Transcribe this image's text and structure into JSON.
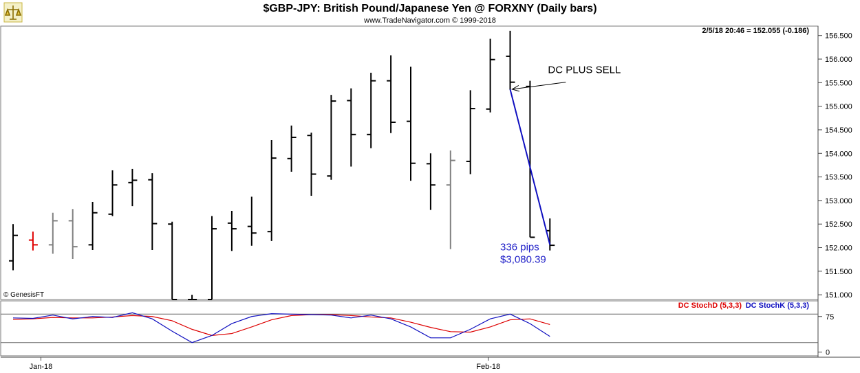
{
  "chart_data": [
    {
      "type": "ohlc",
      "title": "$GBP-JPY:  British Pound/Japanese Yen @ FORXNY  (Daily bars)",
      "subtitle": "www.TradeNavigator.com © 1999-2018",
      "readout": "2/5/18 20:46 = 152.055 (-0.186)",
      "credit": "© GenesisFT",
      "ylim": [
        150.9,
        156.7
      ],
      "y_ticks": [
        151.0,
        151.5,
        152.0,
        152.5,
        153.0,
        153.5,
        154.0,
        154.5,
        155.0,
        155.5,
        156.0,
        156.5
      ],
      "y_tick_labels": [
        "151.000",
        "151.500",
        "152.000",
        "152.500",
        "153.000",
        "153.500",
        "154.000",
        "154.500",
        "155.000",
        "155.500",
        "156.000",
        "156.500"
      ],
      "x_labels": [
        {
          "label": "Jan-18",
          "index": 1.4
        },
        {
          "label": "Feb-18",
          "index": 23.9
        }
      ],
      "bars": [
        {
          "o": 151.72,
          "h": 152.5,
          "l": 151.52,
          "c": 152.26,
          "color": "#000000"
        },
        {
          "o": 152.16,
          "h": 152.34,
          "l": 151.94,
          "c": 152.06,
          "color": "#e00000"
        },
        {
          "o": 152.06,
          "h": 152.74,
          "l": 151.87,
          "c": 152.57,
          "color": "#808080"
        },
        {
          "o": 152.57,
          "h": 152.82,
          "l": 151.76,
          "c": 152.02,
          "color": "#808080"
        },
        {
          "o": 152.06,
          "h": 152.97,
          "l": 151.95,
          "c": 152.74,
          "color": "#000000"
        },
        {
          "o": 152.71,
          "h": 153.64,
          "l": 152.67,
          "c": 153.33,
          "color": "#000000"
        },
        {
          "o": 153.38,
          "h": 153.67,
          "l": 152.88,
          "c": 153.43,
          "color": "#000000"
        },
        {
          "o": 153.44,
          "h": 153.58,
          "l": 151.95,
          "c": 152.51,
          "color": "#000000"
        },
        {
          "o": 152.5,
          "h": 152.55,
          "l": 150.9,
          "c": 150.9,
          "color": "#000000"
        },
        {
          "o": 150.9,
          "h": 151.0,
          "l": 150.9,
          "c": 150.9,
          "color": "#000000"
        },
        {
          "o": 150.9,
          "h": 152.67,
          "l": 150.9,
          "c": 152.4,
          "color": "#000000"
        },
        {
          "o": 152.52,
          "h": 152.78,
          "l": 151.93,
          "c": 152.4,
          "color": "#000000"
        },
        {
          "o": 152.45,
          "h": 153.08,
          "l": 152.04,
          "c": 152.31,
          "color": "#000000"
        },
        {
          "o": 152.34,
          "h": 154.28,
          "l": 152.14,
          "c": 153.9,
          "color": "#000000"
        },
        {
          "o": 153.89,
          "h": 154.59,
          "l": 153.61,
          "c": 154.34,
          "color": "#000000"
        },
        {
          "o": 154.38,
          "h": 154.44,
          "l": 153.1,
          "c": 153.56,
          "color": "#000000"
        },
        {
          "o": 153.52,
          "h": 155.24,
          "l": 153.44,
          "c": 155.11,
          "color": "#000000"
        },
        {
          "o": 155.12,
          "h": 155.38,
          "l": 153.72,
          "c": 154.4,
          "color": "#000000"
        },
        {
          "o": 154.4,
          "h": 155.71,
          "l": 154.11,
          "c": 155.54,
          "color": "#000000"
        },
        {
          "o": 155.54,
          "h": 156.08,
          "l": 154.43,
          "c": 154.66,
          "color": "#000000"
        },
        {
          "o": 154.68,
          "h": 155.84,
          "l": 153.42,
          "c": 153.79,
          "color": "#000000"
        },
        {
          "o": 153.78,
          "h": 154.0,
          "l": 152.8,
          "c": 153.33,
          "color": "#000000"
        },
        {
          "o": 153.33,
          "h": 154.06,
          "l": 151.97,
          "c": 153.85,
          "color": "#808080"
        },
        {
          "o": 153.83,
          "h": 155.34,
          "l": 153.56,
          "c": 154.95,
          "color": "#000000"
        },
        {
          "o": 154.94,
          "h": 156.43,
          "l": 154.87,
          "c": 155.99,
          "color": "#000000"
        },
        {
          "o": 156.06,
          "h": 156.6,
          "l": 155.35,
          "c": 155.51,
          "color": "#000000"
        },
        {
          "o": 155.42,
          "h": 155.54,
          "l": 152.22,
          "c": 152.22,
          "color": "#000000"
        },
        {
          "o": 152.36,
          "h": 152.62,
          "l": 151.94,
          "c": 152.05,
          "color": "#000000"
        }
      ],
      "annotations": [
        {
          "text": "DC PLUS SELL",
          "x_index": 26.9,
          "y": 155.7,
          "color": "#000000"
        },
        {
          "text": "336 pips",
          "x_index": 24.5,
          "y": 151.94,
          "color": "#2020c8"
        },
        {
          "text": "$3,080.39",
          "x_index": 24.5,
          "y": 151.68,
          "color": "#2020c8"
        }
      ],
      "trend_line": {
        "from": {
          "index": 25,
          "y": 155.36
        },
        "to": {
          "index": 27,
          "y": 152.06
        },
        "color": "#1010c0"
      },
      "arrow": {
        "from": {
          "index": 27.8,
          "y": 155.51
        },
        "to": {
          "index": 25.1,
          "y": 155.36
        },
        "color": "#000000"
      }
    },
    {
      "type": "line",
      "ylim": [
        -8,
        108
      ],
      "y_ticks": [
        0,
        75
      ],
      "y_tick_labels": [
        "0",
        "75"
      ],
      "levels": [
        20,
        80
      ],
      "series": [
        {
          "name": "DC StochD (5,3,3)",
          "color": "#dd0000",
          "values": [
            69,
            70,
            73,
            72,
            72,
            74,
            77,
            75,
            66,
            48,
            35,
            39,
            53,
            68,
            77,
            79,
            79,
            77,
            74,
            72,
            63,
            52,
            43,
            42,
            53,
            68,
            70,
            58
          ]
        },
        {
          "name": "DC StochK (5,3,3)",
          "color": "#1010c0",
          "values": [
            72,
            71,
            78,
            70,
            75,
            73,
            83,
            70,
            44,
            20,
            35,
            60,
            75,
            81,
            80,
            79,
            78,
            72,
            78,
            70,
            53,
            30,
            30,
            48,
            70,
            80,
            60,
            33
          ]
        }
      ]
    }
  ]
}
